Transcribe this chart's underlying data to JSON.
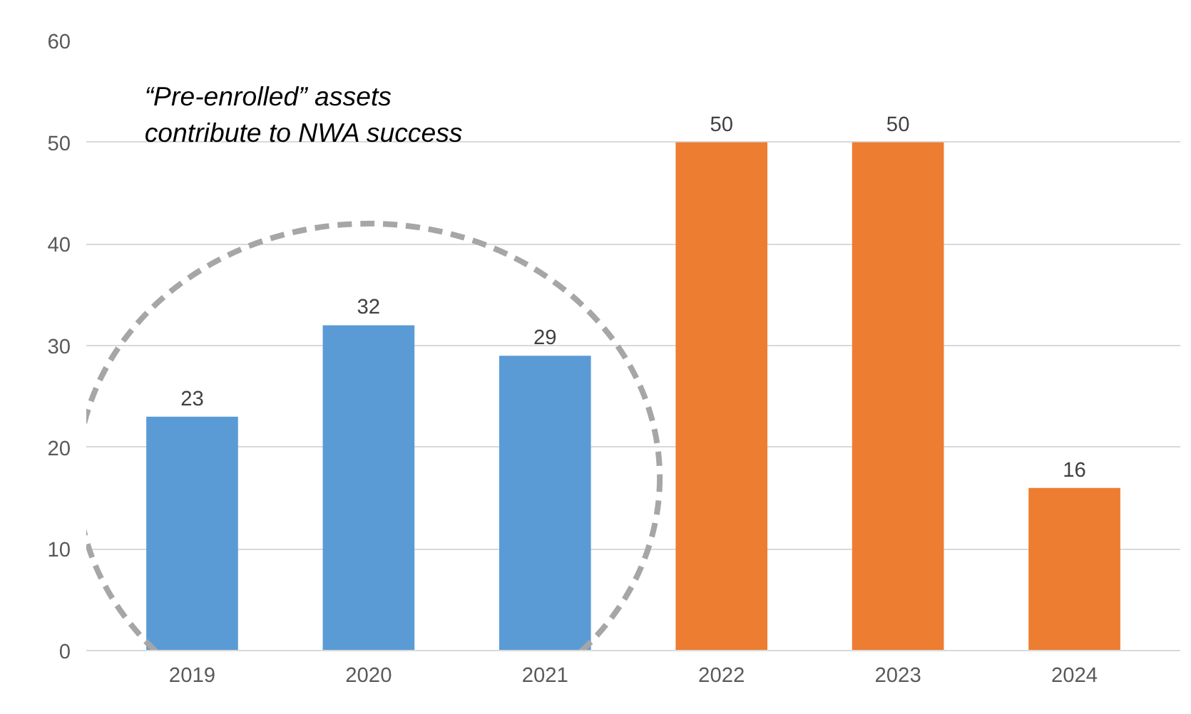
{
  "chart_data": {
    "type": "bar",
    "categories": [
      "2019",
      "2020",
      "2021",
      "2022",
      "2023",
      "2024"
    ],
    "values": [
      23,
      32,
      29,
      50,
      50,
      16
    ],
    "colors": [
      "#5b9bd5",
      "#5b9bd5",
      "#5b9bd5",
      "#ed7d31",
      "#ed7d31",
      "#ed7d31"
    ],
    "ylim": [
      0,
      60
    ],
    "yticks": [
      0,
      10,
      20,
      30,
      40,
      50,
      60
    ],
    "grid": "y",
    "data_labels": true,
    "annotations": [
      "“Pre-enrolled” assets\ncontribute to NWA success"
    ]
  }
}
